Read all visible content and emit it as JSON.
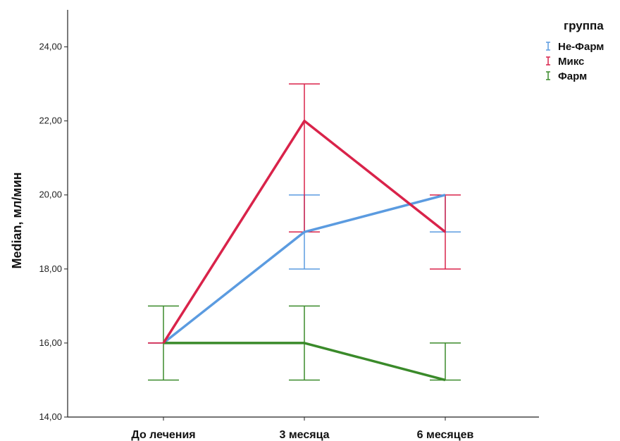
{
  "chart_data": {
    "type": "line",
    "title": "",
    "xlabel": "",
    "ylabel": "Median, мл/мин",
    "categories": [
      "До лечения",
      "3 месяца",
      "6 месяцев"
    ],
    "ylim": [
      14,
      25
    ],
    "yticks": [
      14,
      16,
      18,
      20,
      22,
      24
    ],
    "ytick_labels": [
      "14,00",
      "16,00",
      "18,00",
      "20,00",
      "22,00",
      "24,00"
    ],
    "grid": false,
    "legend": {
      "title": "группа",
      "position": "top-right"
    },
    "series": [
      {
        "name": "Не-Фарм",
        "color": "#5b9be0",
        "values": [
          16,
          19,
          20
        ],
        "err_low": [
          16,
          18,
          19
        ],
        "err_high": [
          16,
          20,
          20
        ]
      },
      {
        "name": "Микс",
        "color": "#d9234a",
        "values": [
          16,
          22,
          19
        ],
        "err_low": [
          16,
          19,
          18
        ],
        "err_high": [
          16,
          23,
          20
        ]
      },
      {
        "name": "Фарм",
        "color": "#3a8a2a",
        "values": [
          16,
          16,
          15
        ],
        "err_low": [
          15,
          15,
          15
        ],
        "err_high": [
          17,
          17,
          16
        ]
      }
    ]
  }
}
